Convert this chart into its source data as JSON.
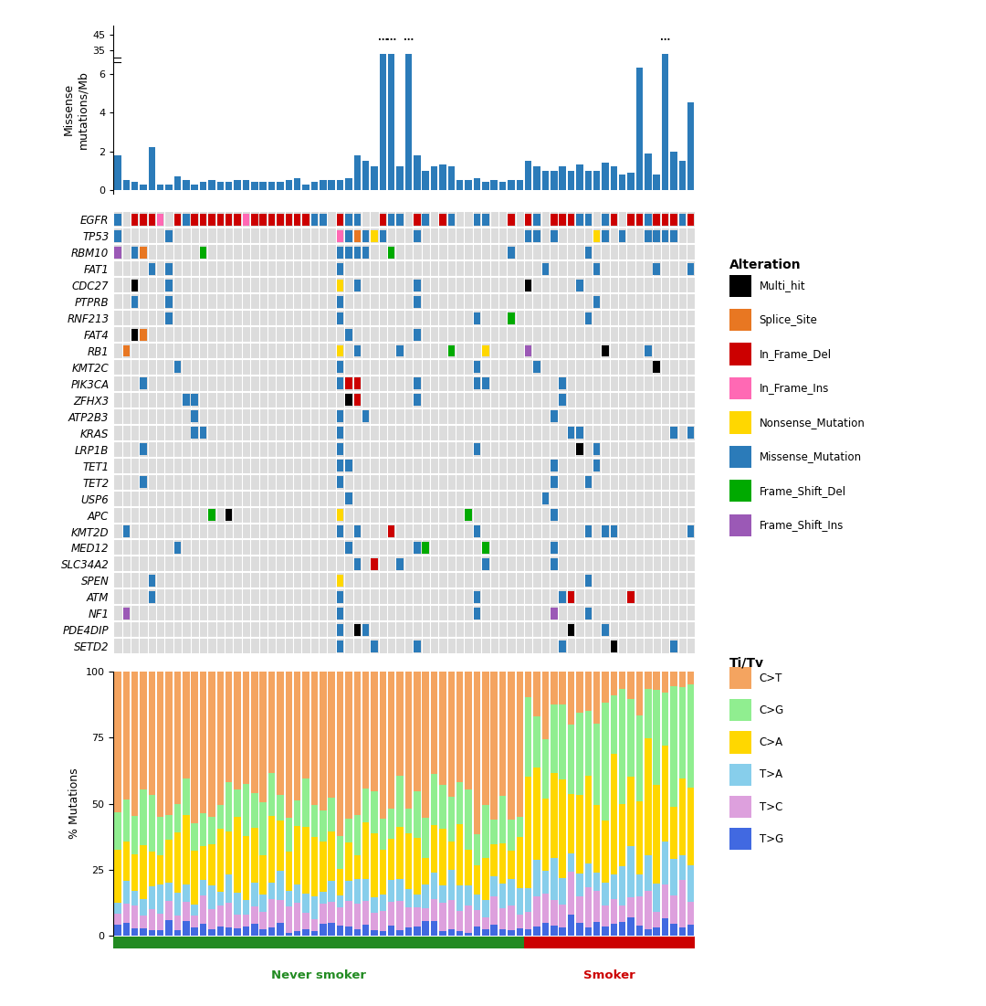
{
  "n_samples": 68,
  "genes": [
    "EGFR",
    "TP53",
    "RBM10",
    "FAT1",
    "CDC27",
    "PTPRB",
    "RNF213",
    "FAT4",
    "RB1",
    "KMT2C",
    "PIK3CA",
    "ZFHX3",
    "ATP2B3",
    "KRAS",
    "LRP1B",
    "TET1",
    "TET2",
    "USP6",
    "APC",
    "KMT2D",
    "MED12",
    "SLC34A2",
    "SPEN",
    "ATM",
    "NF1",
    "PDE4DIP",
    "SETD2"
  ],
  "alteration_colors": {
    "Multi_hit": "#000000",
    "Splice_Site": "#E87722",
    "In_Frame_Del": "#CC0000",
    "In_Frame_Ins": "#FF69B4",
    "Nonsense_Mutation": "#FFD700",
    "Missense_Mutation": "#2B7BB9",
    "Frame_Shift_Del": "#00AA00",
    "Frame_Shift_Ins": "#9B59B6"
  },
  "bar_color": "#2B7BB9",
  "background_color": "#DCDCDC",
  "never_smoker_color": "#228B22",
  "smoker_color": "#CC0000",
  "smoker_split": 48,
  "legend_alterations": [
    "Multi_hit",
    "Splice_Site",
    "In_Frame_Del",
    "In_Frame_Ins",
    "Nonsense_Mutation",
    "Missense_Mutation",
    "Frame_Shift_Del",
    "Frame_Shift_Ins"
  ],
  "titv_labels": [
    "C>T",
    "C>G",
    "C>A",
    "T>A",
    "T>C",
    "T>G"
  ],
  "titv_colors": [
    "#F4A460",
    "#90EE90",
    "#FFD700",
    "#87CEEB",
    "#DDA0DD",
    "#4169E1"
  ],
  "mutations_per_mb": [
    1.8,
    0.5,
    0.4,
    0.3,
    2.2,
    0.3,
    0.3,
    0.7,
    0.5,
    0.3,
    0.4,
    0.5,
    0.4,
    0.4,
    0.5,
    0.5,
    0.4,
    0.4,
    0.4,
    0.4,
    0.5,
    0.6,
    0.3,
    0.4,
    0.5,
    0.5,
    0.5,
    0.6,
    1.8,
    1.5,
    1.2,
    34.5,
    44.0,
    1.2,
    35.0,
    1.8,
    1.0,
    1.2,
    1.3,
    1.2,
    0.5,
    0.5,
    0.6,
    0.4,
    0.5,
    0.4,
    0.5,
    0.5,
    1.5,
    1.2,
    1.0,
    1.0,
    1.2,
    1.0,
    1.3,
    1.0,
    1.0,
    1.4,
    1.2,
    0.8,
    0.9,
    6.3,
    1.9,
    0.8,
    37.0,
    2.0,
    1.5,
    4.5
  ],
  "dots_samples": [
    31,
    32,
    33,
    34,
    64
  ]
}
